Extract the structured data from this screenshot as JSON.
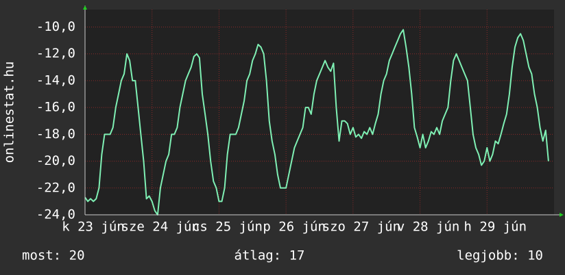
{
  "chart_data": {
    "type": "line",
    "ylabel": "onlinestat.hu",
    "ylim": [
      -24,
      -8.7
    ],
    "yticks": [
      {
        "value": -24,
        "label": "-24,0"
      },
      {
        "value": -22,
        "label": "-22,0"
      },
      {
        "value": -20,
        "label": "-20,0"
      },
      {
        "value": -18,
        "label": "-18,0"
      },
      {
        "value": -16,
        "label": "-16,0"
      },
      {
        "value": -14,
        "label": "-14,0"
      },
      {
        "value": -12,
        "label": "-12,0"
      },
      {
        "value": -10,
        "label": "-10,0"
      }
    ],
    "xlim": [
      0,
      168
    ],
    "xticks": [
      {
        "value": 0,
        "label": "k 23 jún"
      },
      {
        "value": 24,
        "label": "sze 24 jún"
      },
      {
        "value": 48,
        "label": "cs 25 jún"
      },
      {
        "value": 72,
        "label": "p 26 jún"
      },
      {
        "value": 96,
        "label": "szo 27 jún"
      },
      {
        "value": 120,
        "label": "v 28 jún"
      },
      {
        "value": 144,
        "label": "h 29 jún"
      }
    ],
    "grid": true,
    "series": [
      {
        "color": "#7ff0b4",
        "x": [
          0,
          1,
          2,
          3,
          4,
          5,
          6,
          7,
          8,
          9,
          10,
          11,
          12,
          13,
          14,
          15,
          16,
          17,
          18,
          19,
          20,
          21,
          22,
          23,
          24,
          25,
          26,
          27,
          28,
          29,
          30,
          31,
          32,
          33,
          34,
          35,
          36,
          37,
          38,
          39,
          40,
          41,
          42,
          43,
          44,
          45,
          46,
          47,
          48,
          49,
          50,
          51,
          52,
          53,
          54,
          55,
          56,
          57,
          58,
          59,
          60,
          61,
          62,
          63,
          64,
          65,
          66,
          67,
          68,
          69,
          70,
          71,
          72,
          73,
          74,
          75,
          76,
          77,
          78,
          79,
          80,
          81,
          82,
          83,
          84,
          85,
          86,
          87,
          88,
          89,
          90,
          91,
          92,
          93,
          94,
          95,
          96,
          97,
          98,
          99,
          100,
          101,
          102,
          103,
          104,
          105,
          106,
          107,
          108,
          109,
          110,
          111,
          112,
          113,
          114,
          115,
          116,
          117,
          118,
          119,
          120,
          121,
          122,
          123,
          124,
          125,
          126,
          127,
          128,
          129,
          130,
          131,
          132,
          133,
          134,
          135,
          136,
          137,
          138,
          139,
          140,
          141,
          142,
          143,
          144,
          145,
          146,
          147,
          148,
          149,
          150,
          151,
          152,
          153,
          154,
          155,
          156,
          157,
          158,
          159,
          160,
          161,
          162,
          163,
          164,
          165,
          166
        ],
        "values": [
          -22.7,
          -23,
          -22.8,
          -23,
          -22.8,
          -22,
          -19.5,
          -18,
          -18,
          -18,
          -17.5,
          -16,
          -15,
          -14,
          -13.5,
          -12,
          -12.5,
          -14,
          -14,
          -16,
          -18,
          -20,
          -22.8,
          -22.6,
          -23,
          -23.7,
          -24,
          -22,
          -21,
          -20,
          -19.5,
          -18,
          -18,
          -17.5,
          -16,
          -15,
          -14,
          -13.5,
          -13,
          -12.2,
          -12,
          -12.3,
          -15,
          -16.5,
          -18,
          -20,
          -21.5,
          -22,
          -23,
          -23,
          -22,
          -19.5,
          -18,
          -18,
          -18,
          -17.5,
          -16.5,
          -15.5,
          -14,
          -13.5,
          -12.5,
          -12,
          -11.3,
          -11.5,
          -12,
          -14,
          -17,
          -18.5,
          -19.5,
          -21,
          -22,
          -22,
          -22,
          -21,
          -20,
          -19,
          -18.5,
          -18,
          -17.5,
          -16,
          -16,
          -16.5,
          -15,
          -14,
          -13.5,
          -13,
          -12.5,
          -13,
          -13.3,
          -12.7,
          -16,
          -18.5,
          -17,
          -17,
          -17.2,
          -18,
          -17.5,
          -18.2,
          -18,
          -18.3,
          -17.8,
          -18,
          -17.5,
          -18,
          -17.2,
          -16.5,
          -15,
          -14,
          -13.5,
          -12.5,
          -12,
          -11.5,
          -11,
          -10.5,
          -10.2,
          -11.5,
          -13,
          -15,
          -17.5,
          -18.2,
          -19,
          -18,
          -19,
          -18.5,
          -17.8,
          -18,
          -17.5,
          -18,
          -17,
          -16.5,
          -16,
          -14,
          -12.5,
          -12,
          -12.5,
          -13,
          -13.5,
          -14,
          -16,
          -18,
          -19,
          -19.5,
          -20.3,
          -20,
          -19,
          -20,
          -19.5,
          -18.5,
          -18.7,
          -18,
          -17.2,
          -16.5,
          -15,
          -13,
          -11.5,
          -10.8,
          -10.5,
          -11,
          -12,
          -13,
          -13.5,
          -15,
          -16,
          -17.5,
          -18.5,
          -17.7,
          -20
        ]
      }
    ],
    "footer": [
      "most: 20",
      "átlag: 17",
      "legjobb: 10"
    ]
  }
}
